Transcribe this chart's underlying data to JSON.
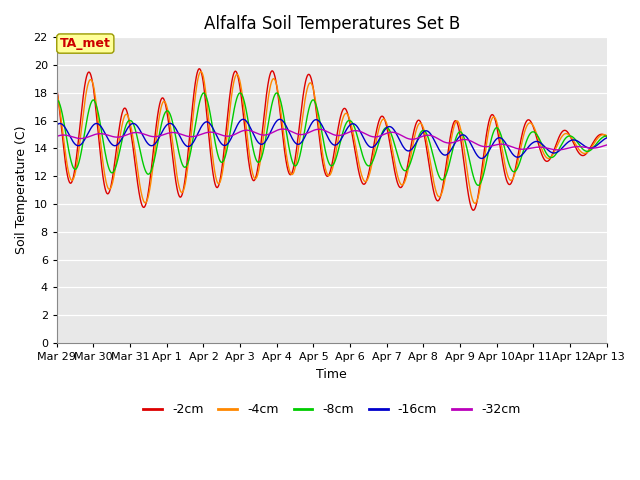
{
  "title": "Alfalfa Soil Temperatures Set B",
  "xlabel": "Time",
  "ylabel": "Soil Temperature (C)",
  "ylim": [
    0,
    22
  ],
  "yticks": [
    0,
    2,
    4,
    6,
    8,
    10,
    12,
    14,
    16,
    18,
    20,
    22
  ],
  "xlim": [
    0,
    360
  ],
  "xtick_labels": [
    "Mar 29",
    "Mar 30",
    "Mar 31",
    "Apr 1",
    "Apr 2",
    "Apr 3",
    "Apr 4",
    "Apr 5",
    "Apr 6",
    "Apr 7",
    "Apr 8",
    "Apr 9",
    "Apr 10",
    "Apr 11",
    "Apr 12",
    "Apr 13"
  ],
  "xtick_positions": [
    0,
    24,
    48,
    72,
    96,
    120,
    144,
    168,
    192,
    216,
    240,
    264,
    288,
    312,
    336,
    360
  ],
  "series_colors": [
    "#dd0000",
    "#ff8800",
    "#00cc00",
    "#0000cc",
    "#bb00bb"
  ],
  "series_labels": [
    "-2cm",
    "-4cm",
    "-8cm",
    "-16cm",
    "-32cm"
  ],
  "plot_bg_color": "#e8e8e8",
  "annotation_text": "TA_met",
  "annotation_color": "#cc0000",
  "annotation_bg": "#ffff99",
  "title_fontsize": 12,
  "axis_fontsize": 9,
  "tick_fontsize": 8
}
